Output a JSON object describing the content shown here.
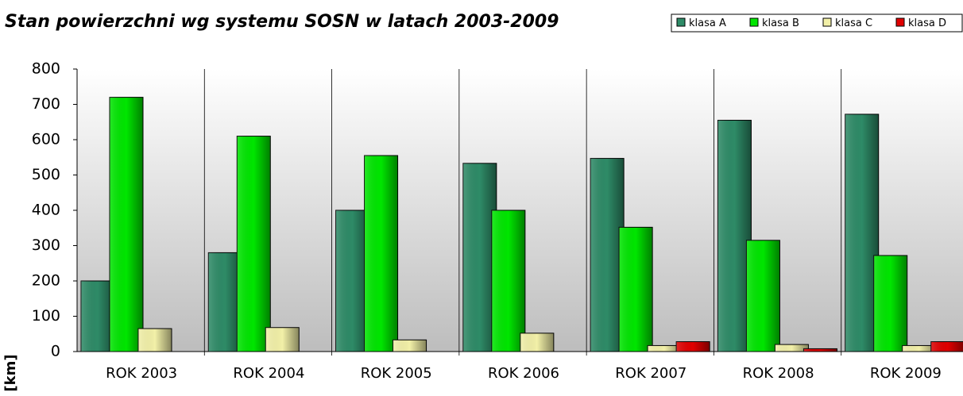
{
  "chart_data": {
    "type": "bar",
    "title": "Stan powierzchni wg systemu SOSN w latach 2003-2009",
    "y_label": "[km]",
    "categories": [
      "ROK  2003",
      "ROK  2004",
      "ROK  2005",
      "ROK  2006",
      "ROK  2007",
      "ROK  2008",
      "ROK  2009"
    ],
    "series": [
      {
        "name": "klasa A",
        "color": "#2e8b67",
        "values": [
          200,
          280,
          400,
          533,
          547,
          655,
          672
        ]
      },
      {
        "name": "klasa B",
        "color": "#00e600",
        "values": [
          720,
          610,
          555,
          400,
          352,
          315,
          272
        ]
      },
      {
        "name": "klasa C",
        "color": "#f2f0a8",
        "values": [
          65,
          68,
          33,
          52,
          17,
          20,
          17
        ]
      },
      {
        "name": "klasa D",
        "color": "#e00000",
        "values": [
          null,
          null,
          null,
          null,
          28,
          8,
          28
        ]
      }
    ],
    "ylim": [
      0,
      800
    ],
    "yticks": [
      0,
      100,
      200,
      300,
      400,
      500,
      600,
      700,
      800
    ],
    "grid": false,
    "legend": "top-right"
  }
}
